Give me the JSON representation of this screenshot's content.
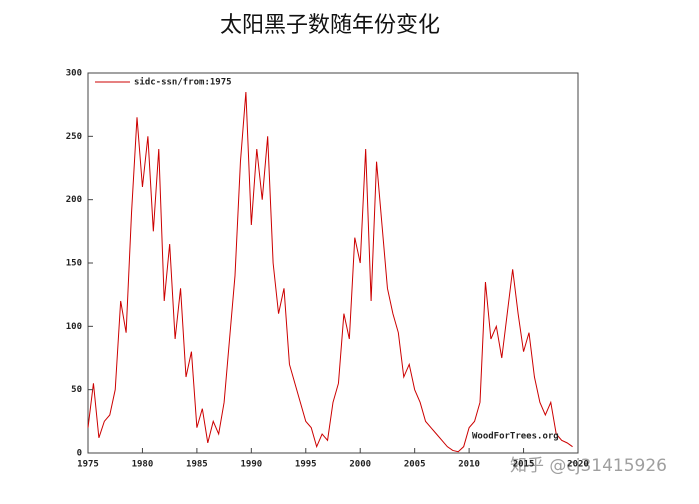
{
  "chart_data": {
    "type": "line",
    "title": "太阳黑子数随年份变化",
    "series": [
      {
        "name": "sidc-ssn/from:1975",
        "color": "#cc0000",
        "values": [
          20,
          55,
          12,
          25,
          30,
          50,
          120,
          95,
          190,
          265,
          210,
          250,
          175,
          240,
          120,
          165,
          90,
          130,
          60,
          80,
          20,
          35,
          8,
          25,
          15,
          40,
          90,
          140,
          230,
          285,
          180,
          240,
          200,
          250,
          150,
          110,
          130,
          70,
          55,
          40,
          25,
          20,
          5,
          15,
          10,
          40,
          55,
          110,
          90,
          170,
          150,
          240,
          120,
          230,
          180,
          130,
          110,
          95,
          60,
          70,
          50,
          40,
          25,
          20,
          15,
          10,
          5,
          2,
          1,
          5,
          20,
          25,
          40,
          135,
          90,
          100,
          75,
          110,
          145,
          110,
          80,
          95,
          60,
          40,
          30,
          40,
          15,
          10,
          8,
          5
        ]
      }
    ],
    "x": [
      1975,
      1975.5,
      1976,
      1976.5,
      1977,
      1977.5,
      1978,
      1978.5,
      1979,
      1979.5,
      1980,
      1980.5,
      1981,
      1981.5,
      1982,
      1982.5,
      1983,
      1983.5,
      1984,
      1984.5,
      1985,
      1985.5,
      1986,
      1986.5,
      1987,
      1987.5,
      1988,
      1988.5,
      1989,
      1989.5,
      1990,
      1990.5,
      1991,
      1991.5,
      1992,
      1992.5,
      1993,
      1993.5,
      1994,
      1994.5,
      1995,
      1995.5,
      1996,
      1996.5,
      1997,
      1997.5,
      1998,
      1998.5,
      1999,
      1999.5,
      2000,
      2000.5,
      2001,
      2001.5,
      2002,
      2002.5,
      2003,
      2003.5,
      2004,
      2004.5,
      2005,
      2005.5,
      2006,
      2006.5,
      2007,
      2007.5,
      2008,
      2008.5,
      2009,
      2009.5,
      2010,
      2010.5,
      2011,
      2011.5,
      2012,
      2012.5,
      2013,
      2013.5,
      2014,
      2014.5,
      2015,
      2015.5,
      2016,
      2016.5,
      2017,
      2017.5,
      2018,
      2018.5,
      2019,
      2019.5
    ],
    "xlim": [
      1975,
      2020
    ],
    "xticks": [
      1975,
      1980,
      1985,
      1990,
      1995,
      2000,
      2005,
      2010,
      2015,
      2020
    ],
    "ylim": [
      0,
      300
    ],
    "yticks": [
      0,
      50,
      100,
      150,
      200,
      250,
      300
    ],
    "annotation": "WoodForTrees.org",
    "watermark": "知乎 @cj31415926",
    "legend": "upper left"
  }
}
